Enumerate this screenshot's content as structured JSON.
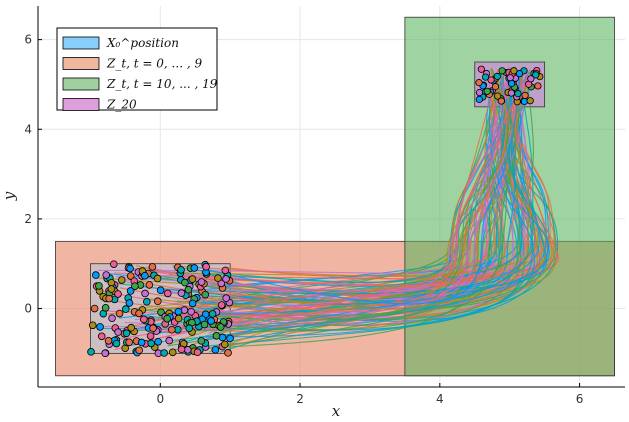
{
  "chart_data": {
    "type": "scatter",
    "title": "",
    "xlabel": "x",
    "ylabel": "y",
    "xlim": [
      -1.75,
      6.65
    ],
    "ylim": [
      -1.75,
      6.75
    ],
    "xticks": [
      0,
      2,
      4,
      6
    ],
    "yticks": [
      0,
      2,
      4,
      6
    ],
    "grid": true,
    "legend_position": "top-left",
    "legend": [
      {
        "label": "X₀^position",
        "color": "#87CEFA"
      },
      {
        "label": "Z_t, t = 0, ... , 9",
        "color": "#F0B79F"
      },
      {
        "label": "Z_t, t = 10, ... , 19",
        "color": "#9FD1A0"
      },
      {
        "label": "Z_20",
        "color": "#DDA0DD"
      }
    ],
    "regions": [
      {
        "name": "Z_t, t = 0, ... , 9",
        "x": [
          -1.5,
          6.5
        ],
        "y": [
          -1.5,
          1.5
        ],
        "color": "#E8896A",
        "opacity": 0.62
      },
      {
        "name": "Z_t, t = 10, ... , 19",
        "x": [
          3.5,
          6.5
        ],
        "y": [
          -1.5,
          6.5
        ],
        "color": "#5CB35F",
        "opacity": 0.58
      },
      {
        "name": "Z_20",
        "x": [
          4.5,
          5.5
        ],
        "y": [
          4.5,
          5.5
        ],
        "color": "#C98FD6",
        "opacity": 0.75
      },
      {
        "name": "X₀^position",
        "x": [
          -1,
          1
        ],
        "y": [
          -1,
          1
        ],
        "color": "#87CEFA",
        "opacity": 0.35
      }
    ],
    "trajectories": {
      "count": 120,
      "start_region": {
        "x": [
          -1,
          1
        ],
        "y": [
          -1,
          1
        ]
      },
      "end_region": {
        "x": [
          4.5,
          5.5
        ],
        "y": [
          4.5,
          5.5
        ]
      },
      "colors": [
        "#009AFA",
        "#E36F47",
        "#3EA44E",
        "#C371D2",
        "#AC8D18",
        "#00A9AD",
        "#ED5E93"
      ]
    },
    "start_points": {
      "count": 200,
      "x_range": [
        -1,
        1
      ],
      "y_range": [
        -1,
        1
      ]
    },
    "end_points": {
      "count": 60,
      "x_range": [
        4.55,
        5.45
      ],
      "y_range": [
        4.6,
        5.35
      ]
    }
  }
}
